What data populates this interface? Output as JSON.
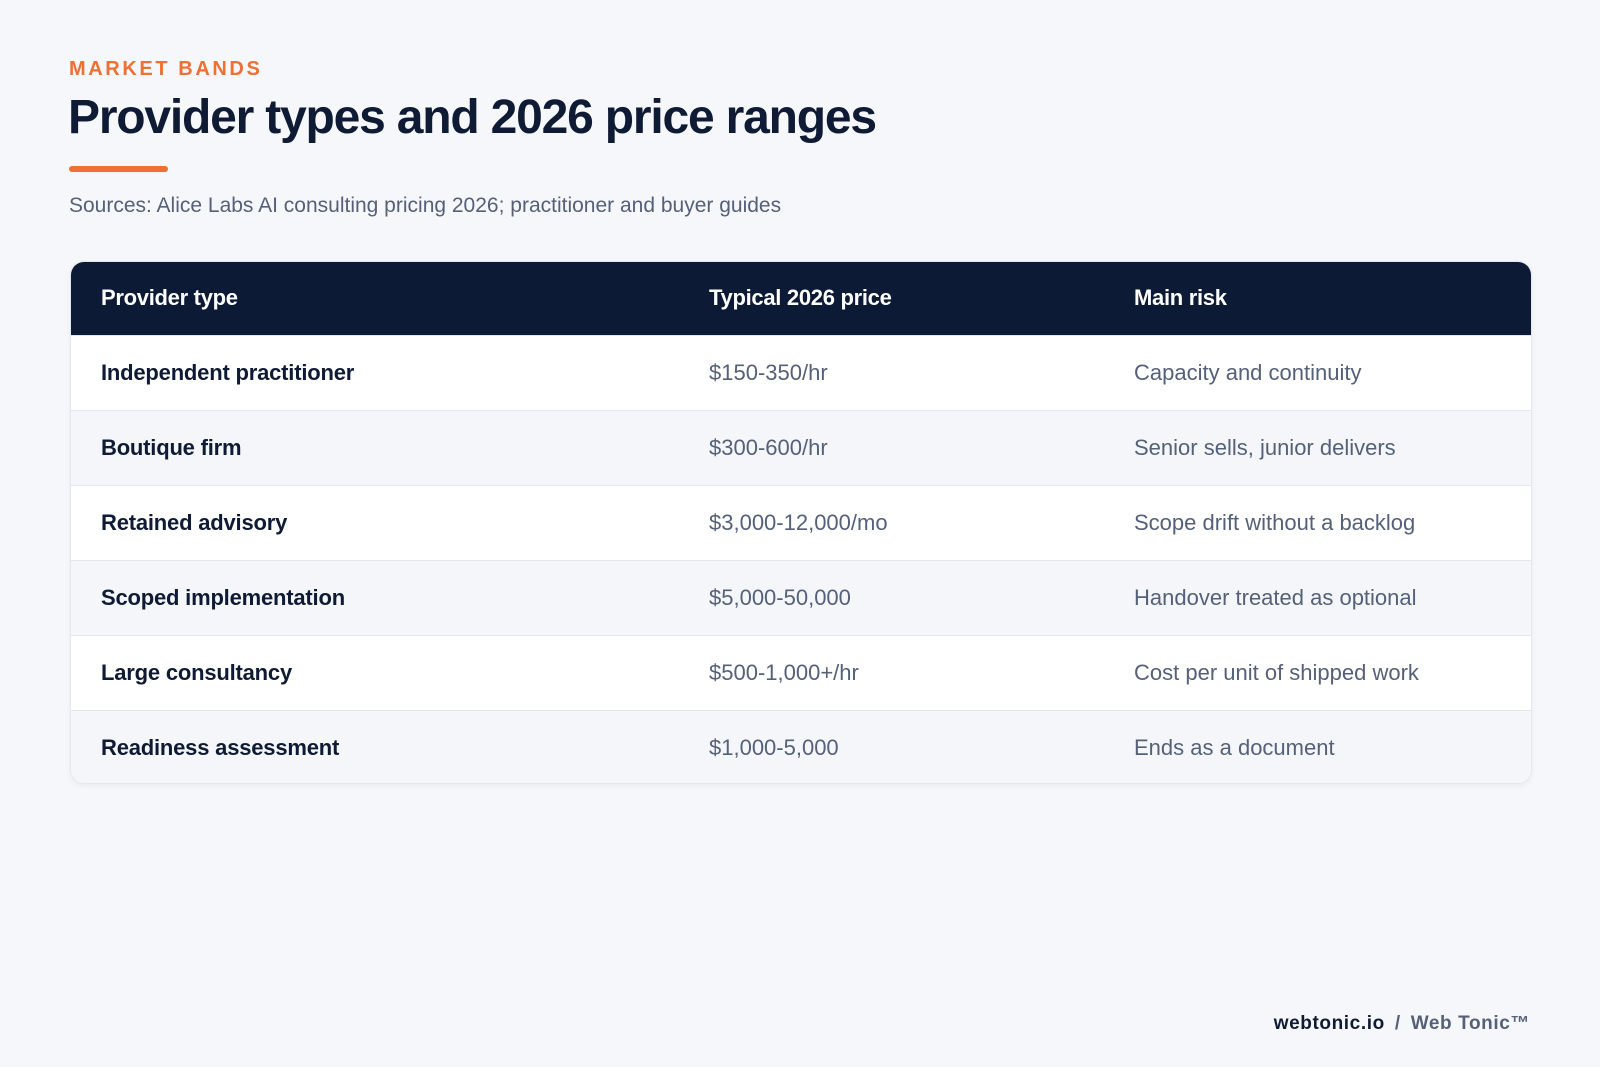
{
  "header": {
    "eyebrow": "MARKET BANDS",
    "title": "Provider types and 2026 price ranges",
    "sources": "Sources: Alice Labs AI consulting pricing 2026; practitioner and buyer guides"
  },
  "table": {
    "columns": [
      "Provider type",
      "Typical 2026 price",
      "Main risk"
    ],
    "rows": [
      {
        "provider": "Independent practitioner",
        "price": "$150-350/hr",
        "risk": "Capacity and continuity"
      },
      {
        "provider": "Boutique firm",
        "price": "$300-600/hr",
        "risk": "Senior sells, junior delivers"
      },
      {
        "provider": "Retained advisory",
        "price": "$3,000-12,000/mo",
        "risk": "Scope drift without a backlog"
      },
      {
        "provider": "Scoped implementation",
        "price": "$5,000-50,000",
        "risk": "Handover treated as optional"
      },
      {
        "provider": "Large consultancy",
        "price": "$500-1,000+/hr",
        "risk": "Cost per unit of shipped work"
      },
      {
        "provider": "Readiness assessment",
        "price": "$1,000-5,000",
        "risk": "Ends as a document"
      }
    ]
  },
  "footer": {
    "domain": "webtonic.io",
    "separator": "/",
    "brand": "Web Tonic™"
  },
  "colors": {
    "accent": "#ee7032",
    "header_bg": "#0d1a35",
    "page_bg": "#f5f7fa",
    "text_dark": "#0f1b35",
    "text_muted": "#56607a"
  }
}
